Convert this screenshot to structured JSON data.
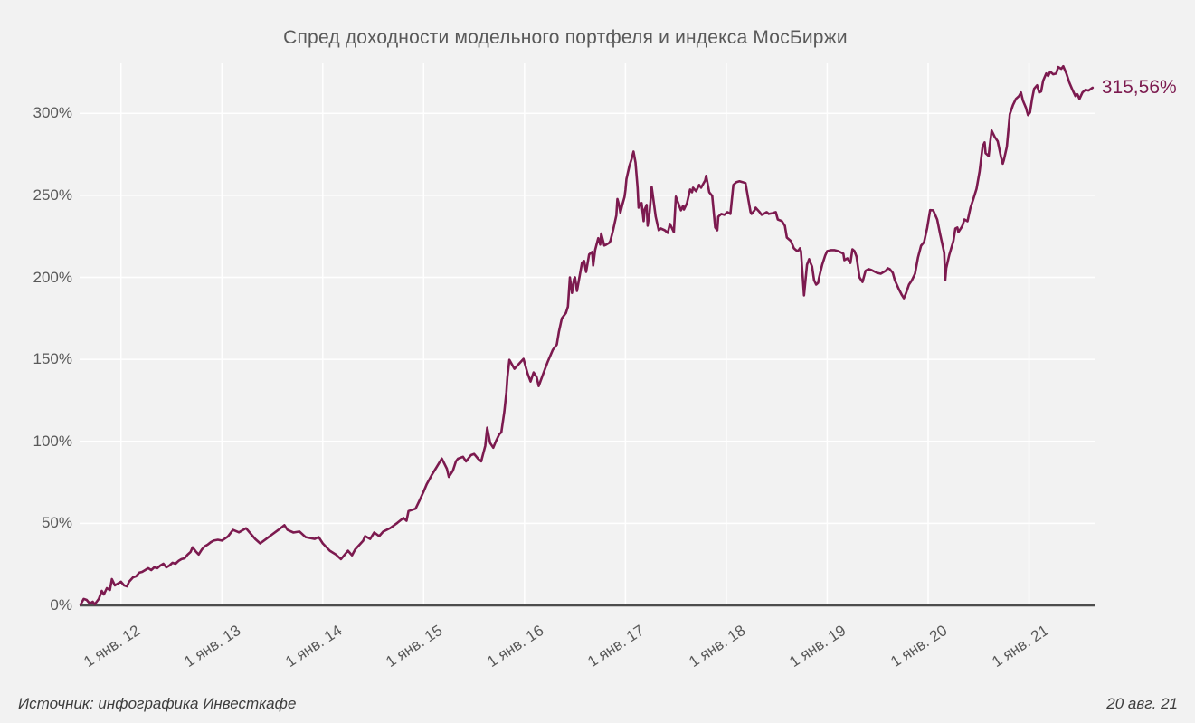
{
  "title": "Спред доходности модельного портфеля и индекса МосБиржи",
  "end_label": "315,56%",
  "footer": {
    "source": "Источник: инфографика Инвесткафе",
    "date": "20 авг. 21"
  },
  "colors": {
    "background": "#f2f2f2",
    "line": "#7c1a4f",
    "grid": "#ffffff",
    "axis": "#4d4d4d",
    "tick_text": "#595959",
    "caption_text": "#3d3d3d"
  },
  "chart_data": {
    "type": "line",
    "title": "Спред доходности модельного портфеля и индекса МосБиржи",
    "xlabel": "",
    "ylabel": "",
    "grid": true,
    "legend_position": "none",
    "last_value": 315.56,
    "last_value_label": "315,56%",
    "as_of_date": "20 авг. 21",
    "xlim": [
      2011.59,
      2021.65
    ],
    "ylim": [
      0,
      336
    ],
    "y_ticks": [
      {
        "value": 0,
        "label": "0%"
      },
      {
        "value": 50,
        "label": "50%"
      },
      {
        "value": 100,
        "label": "100%"
      },
      {
        "value": 150,
        "label": "150%"
      },
      {
        "value": 200,
        "label": "200%"
      },
      {
        "value": 250,
        "label": "250%"
      },
      {
        "value": 300,
        "label": "300%"
      }
    ],
    "x_ticks": [
      {
        "value": 2012,
        "label": "1 янв. 12"
      },
      {
        "value": 2013,
        "label": "1 янв. 13"
      },
      {
        "value": 2014,
        "label": "1 янв. 14"
      },
      {
        "value": 2015,
        "label": "1 янв. 15"
      },
      {
        "value": 2016,
        "label": "1 янв. 16"
      },
      {
        "value": 2017,
        "label": "1 янв. 17"
      },
      {
        "value": 2018,
        "label": "1 янв. 18"
      },
      {
        "value": 2019,
        "label": "1 янв. 19"
      },
      {
        "value": 2020,
        "label": "1 янв. 20"
      },
      {
        "value": 2021,
        "label": "1 янв. 21"
      }
    ],
    "points": [
      [
        2011.6,
        0.5
      ],
      [
        2011.63,
        3.9
      ],
      [
        2011.66,
        3.3
      ],
      [
        2011.69,
        1.1
      ],
      [
        2011.72,
        2.2
      ],
      [
        2011.74,
        0.6
      ],
      [
        2011.78,
        3.9
      ],
      [
        2011.81,
        8.8
      ],
      [
        2011.83,
        6.6
      ],
      [
        2011.86,
        10.5
      ],
      [
        2011.89,
        9.4
      ],
      [
        2011.91,
        16
      ],
      [
        2011.94,
        12.2
      ],
      [
        2011.97,
        13.3
      ],
      [
        2012,
        14.4
      ],
      [
        2012.03,
        12.2
      ],
      [
        2012.06,
        11.6
      ],
      [
        2012.08,
        14.4
      ],
      [
        2012.12,
        17.1
      ],
      [
        2012.15,
        17.7
      ],
      [
        2012.18,
        19.9
      ],
      [
        2012.21,
        20.4
      ],
      [
        2012.24,
        21.5
      ],
      [
        2012.27,
        22.7
      ],
      [
        2012.3,
        21.5
      ],
      [
        2012.33,
        23.2
      ],
      [
        2012.36,
        22.7
      ],
      [
        2012.39,
        24.3
      ],
      [
        2012.42,
        25.4
      ],
      [
        2012.45,
        23.2
      ],
      [
        2012.48,
        24.3
      ],
      [
        2012.51,
        26
      ],
      [
        2012.54,
        25.4
      ],
      [
        2012.57,
        27.1
      ],
      [
        2012.6,
        28.2
      ],
      [
        2012.63,
        28.7
      ],
      [
        2012.66,
        30.9
      ],
      [
        2012.69,
        32.6
      ],
      [
        2012.71,
        35.4
      ],
      [
        2012.74,
        33
      ],
      [
        2012.77,
        31
      ],
      [
        2012.8,
        34
      ],
      [
        2012.83,
        36
      ],
      [
        2012.86,
        37
      ],
      [
        2012.89,
        38.5
      ],
      [
        2012.92,
        39.5
      ],
      [
        2012.96,
        40
      ],
      [
        2013,
        39.5
      ],
      [
        2013.06,
        42
      ],
      [
        2013.11,
        46
      ],
      [
        2013.17,
        44.5
      ],
      [
        2013.24,
        47
      ],
      [
        2013.33,
        40.5
      ],
      [
        2013.38,
        37.8
      ],
      [
        2013.44,
        40.5
      ],
      [
        2013.5,
        43.3
      ],
      [
        2013.56,
        46
      ],
      [
        2013.62,
        48.9
      ],
      [
        2013.65,
        46
      ],
      [
        2013.71,
        44.4
      ],
      [
        2013.77,
        45
      ],
      [
        2013.83,
        41.6
      ],
      [
        2013.92,
        40.5
      ],
      [
        2013.96,
        41.6
      ],
      [
        2014,
        37.8
      ],
      [
        2014.07,
        33.3
      ],
      [
        2014.13,
        31
      ],
      [
        2014.18,
        28.2
      ],
      [
        2014.25,
        33.3
      ],
      [
        2014.29,
        30.5
      ],
      [
        2014.32,
        34
      ],
      [
        2014.4,
        39.4
      ],
      [
        2014.42,
        42.2
      ],
      [
        2014.47,
        40.5
      ],
      [
        2014.51,
        44.4
      ],
      [
        2014.56,
        42.2
      ],
      [
        2014.6,
        45
      ],
      [
        2014.67,
        47.2
      ],
      [
        2014.74,
        50.3
      ],
      [
        2014.8,
        53.3
      ],
      [
        2014.83,
        51.6
      ],
      [
        2014.85,
        57.5
      ],
      [
        2014.92,
        58.9
      ],
      [
        2014.96,
        64.1
      ],
      [
        2015,
        69.4
      ],
      [
        2015.03,
        73.9
      ],
      [
        2015.08,
        79.4
      ],
      [
        2015.12,
        83.4
      ],
      [
        2015.18,
        89.5
      ],
      [
        2015.23,
        83.3
      ],
      [
        2015.25,
        78.3
      ],
      [
        2015.29,
        82.2
      ],
      [
        2015.32,
        87.8
      ],
      [
        2015.34,
        89.4
      ],
      [
        2015.39,
        90.6
      ],
      [
        2015.42,
        87.8
      ],
      [
        2015.47,
        91.6
      ],
      [
        2015.5,
        92.3
      ],
      [
        2015.54,
        89.4
      ],
      [
        2015.57,
        87.8
      ],
      [
        2015.61,
        97.2
      ],
      [
        2015.63,
        108.3
      ],
      [
        2015.66,
        98.9
      ],
      [
        2015.69,
        96.1
      ],
      [
        2015.72,
        100.5
      ],
      [
        2015.75,
        104.4
      ],
      [
        2015.77,
        105.5
      ],
      [
        2015.8,
        118
      ],
      [
        2015.82,
        130
      ],
      [
        2015.83,
        138.9
      ],
      [
        2015.85,
        149.7
      ],
      [
        2015.9,
        144.2
      ],
      [
        2015.94,
        147
      ],
      [
        2015.99,
        150.3
      ],
      [
        2016.03,
        141.4
      ],
      [
        2016.06,
        136.5
      ],
      [
        2016.09,
        142
      ],
      [
        2016.12,
        139.2
      ],
      [
        2016.14,
        133.7
      ],
      [
        2016.18,
        140.3
      ],
      [
        2016.23,
        148.6
      ],
      [
        2016.28,
        155.8
      ],
      [
        2016.32,
        159
      ],
      [
        2016.34,
        166.7
      ],
      [
        2016.37,
        175
      ],
      [
        2016.41,
        178.3
      ],
      [
        2016.43,
        182.2
      ],
      [
        2016.45,
        200
      ],
      [
        2016.47,
        190.5
      ],
      [
        2016.49,
        198.9
      ],
      [
        2016.5,
        200
      ],
      [
        2016.52,
        191.7
      ],
      [
        2016.57,
        208.9
      ],
      [
        2016.59,
        210
      ],
      [
        2016.61,
        203.3
      ],
      [
        2016.64,
        213.9
      ],
      [
        2016.67,
        215.5
      ],
      [
        2016.68,
        207.2
      ],
      [
        2016.7,
        216.7
      ],
      [
        2016.73,
        223.9
      ],
      [
        2016.75,
        220
      ],
      [
        2016.76,
        226.7
      ],
      [
        2016.79,
        219.4
      ],
      [
        2016.81,
        220
      ],
      [
        2016.84,
        221.1
      ],
      [
        2016.85,
        222.2
      ],
      [
        2016.88,
        229.4
      ],
      [
        2016.91,
        237.8
      ],
      [
        2016.92,
        247.8
      ],
      [
        2016.94,
        243.3
      ],
      [
        2016.95,
        239.4
      ],
      [
        2016.97,
        244.4
      ],
      [
        2016.99,
        248.9
      ],
      [
        2017,
        253.3
      ],
      [
        2017.01,
        260
      ],
      [
        2017.04,
        268
      ],
      [
        2017.06,
        272
      ],
      [
        2017.08,
        276.7
      ],
      [
        2017.1,
        270
      ],
      [
        2017.12,
        254.7
      ],
      [
        2017.13,
        242.5
      ],
      [
        2017.16,
        245.3
      ],
      [
        2017.18,
        234.3
      ],
      [
        2017.19,
        241.4
      ],
      [
        2017.21,
        244.2
      ],
      [
        2017.22,
        231.5
      ],
      [
        2017.24,
        239.8
      ],
      [
        2017.26,
        255.2
      ],
      [
        2017.3,
        237
      ],
      [
        2017.33,
        228.7
      ],
      [
        2017.35,
        229.8
      ],
      [
        2017.39,
        228.7
      ],
      [
        2017.42,
        227.1
      ],
      [
        2017.44,
        232.6
      ],
      [
        2017.48,
        227.6
      ],
      [
        2017.5,
        249.2
      ],
      [
        2017.53,
        244.2
      ],
      [
        2017.55,
        240.9
      ],
      [
        2017.57,
        243.6
      ],
      [
        2017.58,
        241.4
      ],
      [
        2017.61,
        245.3
      ],
      [
        2017.64,
        253.6
      ],
      [
        2017.66,
        251.9
      ],
      [
        2017.67,
        254.7
      ],
      [
        2017.7,
        252.5
      ],
      [
        2017.73,
        256.4
      ],
      [
        2017.75,
        254.7
      ],
      [
        2017.79,
        259.1
      ],
      [
        2017.8,
        261.9
      ],
      [
        2017.83,
        251.9
      ],
      [
        2017.86,
        249.7
      ],
      [
        2017.89,
        230.4
      ],
      [
        2017.91,
        228.7
      ],
      [
        2017.92,
        237
      ],
      [
        2017.95,
        238.7
      ],
      [
        2017.98,
        238.1
      ],
      [
        2018.01,
        239.8
      ],
      [
        2018.04,
        238.7
      ],
      [
        2018.07,
        256.4
      ],
      [
        2018.1,
        258.1
      ],
      [
        2018.13,
        258.6
      ],
      [
        2018.16,
        258.1
      ],
      [
        2018.19,
        257.5
      ],
      [
        2018.22,
        247
      ],
      [
        2018.24,
        239.8
      ],
      [
        2018.25,
        238.7
      ],
      [
        2018.28,
        240.9
      ],
      [
        2018.29,
        242.5
      ],
      [
        2018.33,
        239.8
      ],
      [
        2018.35,
        238.1
      ],
      [
        2018.37,
        238.7
      ],
      [
        2018.4,
        239.8
      ],
      [
        2018.42,
        238.7
      ],
      [
        2018.46,
        239.2
      ],
      [
        2018.49,
        239.8
      ],
      [
        2018.51,
        235.3
      ],
      [
        2018.55,
        234.3
      ],
      [
        2018.58,
        231.5
      ],
      [
        2018.6,
        224.3
      ],
      [
        2018.64,
        222.1
      ],
      [
        2018.67,
        217.7
      ],
      [
        2018.69,
        216.6
      ],
      [
        2018.71,
        216
      ],
      [
        2018.73,
        217.7
      ],
      [
        2018.74,
        216
      ],
      [
        2018.77,
        189
      ],
      [
        2018.8,
        207.7
      ],
      [
        2018.82,
        211.1
      ],
      [
        2018.83,
        209.4
      ],
      [
        2018.85,
        206.6
      ],
      [
        2018.87,
        198.3
      ],
      [
        2018.89,
        195.6
      ],
      [
        2018.91,
        196.7
      ],
      [
        2018.92,
        200
      ],
      [
        2018.95,
        207.7
      ],
      [
        2018.98,
        213.3
      ],
      [
        2019,
        216
      ],
      [
        2019.04,
        216.6
      ],
      [
        2019.07,
        216.6
      ],
      [
        2019.11,
        216
      ],
      [
        2019.16,
        214.4
      ],
      [
        2019.17,
        210.5
      ],
      [
        2019.2,
        211.6
      ],
      [
        2019.23,
        208.8
      ],
      [
        2019.25,
        217.1
      ],
      [
        2019.27,
        216
      ],
      [
        2019.29,
        212.7
      ],
      [
        2019.32,
        200
      ],
      [
        2019.35,
        197.2
      ],
      [
        2019.38,
        204
      ],
      [
        2019.41,
        205
      ],
      [
        2019.44,
        204.4
      ],
      [
        2019.49,
        202.8
      ],
      [
        2019.53,
        202.2
      ],
      [
        2019.58,
        204
      ],
      [
        2019.6,
        205.5
      ],
      [
        2019.62,
        205
      ],
      [
        2019.65,
        202.8
      ],
      [
        2019.67,
        198.3
      ],
      [
        2019.71,
        192.8
      ],
      [
        2019.74,
        189.2
      ],
      [
        2019.76,
        187.3
      ],
      [
        2019.78,
        190.1
      ],
      [
        2019.81,
        195.6
      ],
      [
        2019.84,
        198.3
      ],
      [
        2019.87,
        202.2
      ],
      [
        2019.9,
        212.2
      ],
      [
        2019.93,
        219.3
      ],
      [
        2019.96,
        221.5
      ],
      [
        2019.99,
        230
      ],
      [
        2020.02,
        241
      ],
      [
        2020.05,
        240.9
      ],
      [
        2020.09,
        235.3
      ],
      [
        2020.12,
        226
      ],
      [
        2020.16,
        214.9
      ],
      [
        2020.17,
        198.3
      ],
      [
        2020.18,
        205.5
      ],
      [
        2020.21,
        213.8
      ],
      [
        2020.25,
        222.1
      ],
      [
        2020.27,
        229.8
      ],
      [
        2020.29,
        230.4
      ],
      [
        2020.3,
        227.6
      ],
      [
        2020.33,
        230.4
      ],
      [
        2020.34,
        231.5
      ],
      [
        2020.36,
        235.3
      ],
      [
        2020.39,
        234.2
      ],
      [
        2020.42,
        242.5
      ],
      [
        2020.45,
        248.1
      ],
      [
        2020.48,
        254
      ],
      [
        2020.51,
        264.6
      ],
      [
        2020.54,
        279.6
      ],
      [
        2020.56,
        282.3
      ],
      [
        2020.57,
        275.7
      ],
      [
        2020.6,
        274
      ],
      [
        2020.61,
        279.6
      ],
      [
        2020.63,
        289.5
      ],
      [
        2020.66,
        285.6
      ],
      [
        2020.69,
        283
      ],
      [
        2020.72,
        274
      ],
      [
        2020.74,
        269.3
      ],
      [
        2020.75,
        271.3
      ],
      [
        2020.78,
        279.6
      ],
      [
        2020.81,
        299.5
      ],
      [
        2020.84,
        305
      ],
      [
        2020.87,
        308.8
      ],
      [
        2020.9,
        310.5
      ],
      [
        2020.92,
        312.7
      ],
      [
        2020.94,
        307.7
      ],
      [
        2020.97,
        303.3
      ],
      [
        2020.99,
        298.9
      ],
      [
        2021.01,
        300.5
      ],
      [
        2021.03,
        308.8
      ],
      [
        2021.05,
        314.9
      ],
      [
        2021.08,
        317.1
      ],
      [
        2021.1,
        312.7
      ],
      [
        2021.12,
        313.3
      ],
      [
        2021.14,
        319.9
      ],
      [
        2021.17,
        324.3
      ],
      [
        2021.19,
        322.7
      ],
      [
        2021.21,
        325.4
      ],
      [
        2021.24,
        323.8
      ],
      [
        2021.27,
        324.3
      ],
      [
        2021.29,
        328.2
      ],
      [
        2021.32,
        327.1
      ],
      [
        2021.34,
        328.7
      ],
      [
        2021.37,
        324.3
      ],
      [
        2021.4,
        318.8
      ],
      [
        2021.43,
        314.4
      ],
      [
        2021.46,
        310.5
      ],
      [
        2021.48,
        311.6
      ],
      [
        2021.5,
        308.8
      ],
      [
        2021.53,
        312.7
      ],
      [
        2021.56,
        314.4
      ],
      [
        2021.59,
        313.9
      ],
      [
        2021.63,
        315.56
      ]
    ]
  }
}
